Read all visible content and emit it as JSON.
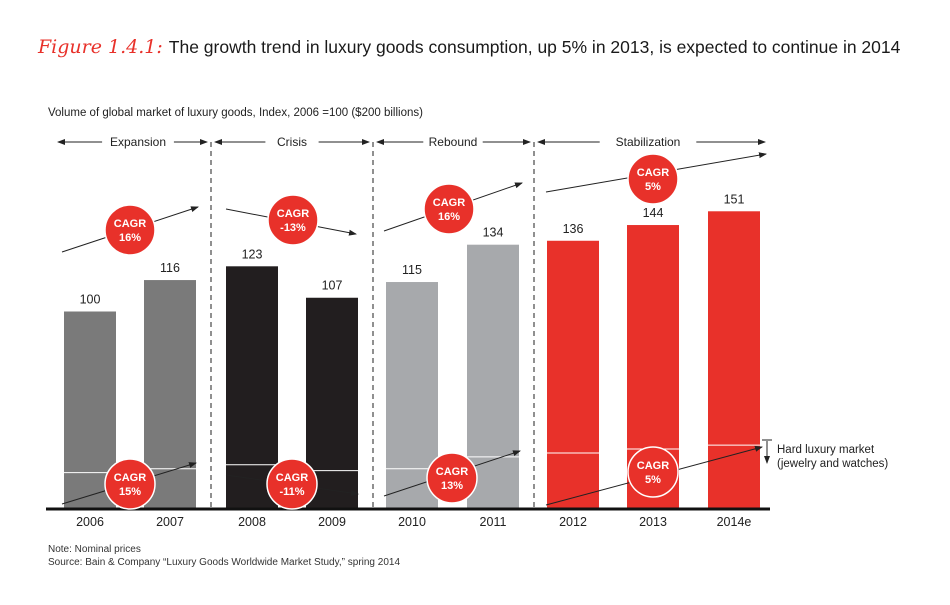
{
  "figure": {
    "label": "Figure 1.4.1:",
    "title": "The growth trend in luxury goods consumption, up 5% in 2013, is expected to continue in 2014"
  },
  "colors": {
    "accent": "#e8312a",
    "expansion": "#7a7a7a",
    "crisis": "#221e1f",
    "rebound": "#a7a9ac",
    "stabilization": "#e8312a",
    "text": "#222222"
  },
  "chart_data": {
    "type": "bar",
    "title": "Volume of global market of luxury goods, Index, 2006 =100 ($200 billions)",
    "xlabel": "",
    "ylabel": "",
    "ylim": [
      0,
      160
    ],
    "categories": [
      "2006",
      "2007",
      "2008",
      "2009",
      "2010",
      "2011",
      "2012",
      "2013",
      "2014e"
    ],
    "values": [
      100,
      116,
      123,
      107,
      115,
      134,
      136,
      144,
      151
    ],
    "labels": [
      "100",
      "116",
      "123",
      "107",
      "115",
      "134",
      "136",
      "144",
      "151"
    ],
    "hard_luxury_values": [
      18,
      20,
      22,
      19,
      20,
      26,
      28,
      30,
      32
    ],
    "phases": [
      {
        "name": "Expansion",
        "cagr": "CAGR 16%",
        "hard_cagr": "CAGR 15%",
        "color": "#7a7a7a"
      },
      {
        "name": "Crisis",
        "cagr": "CAGR -13%",
        "hard_cagr": "CAGR -11%",
        "color": "#221e1f"
      },
      {
        "name": "Rebound",
        "cagr": "CAGR 16%",
        "hard_cagr": "CAGR 13%",
        "color": "#a7a9ac"
      },
      {
        "name": "Stabilization",
        "cagr": "CAGR 5%",
        "hard_cagr": "CAGR 5%",
        "color": "#e8312a"
      }
    ],
    "annotations": {
      "hard_luxury_line1": "Hard luxury market",
      "hard_luxury_line2": "(jewelry and watches)"
    },
    "grid": false,
    "legend": "none"
  },
  "note": {
    "line1": "Note:  Nominal prices",
    "line2": "Source:  Bain & Company “Luxury Goods Worldwide Market Study,” spring 2014"
  }
}
